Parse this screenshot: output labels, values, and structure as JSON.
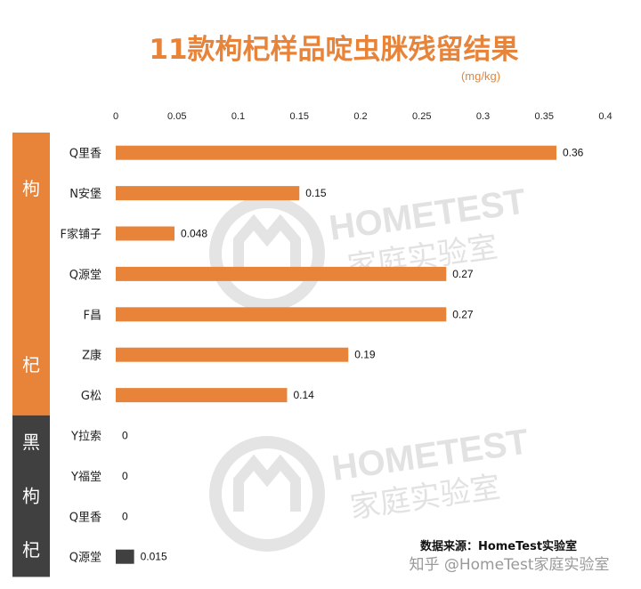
{
  "colors": {
    "accent": "#E8843A",
    "dark": "#404040",
    "watermark": "#cfcfcf"
  },
  "watermark": {
    "brand": "HOMETEST",
    "sub": "家庭实验室"
  },
  "source_note": "数据来源：HomeTest实验室",
  "footer_credit": "知乎 @HomeTest家庭实验室",
  "chart_data": {
    "type": "bar",
    "orientation": "horizontal",
    "title": "11款枸杞样品啶虫脒残留结果",
    "unit_label": "(mg/kg)",
    "xlim": [
      0,
      0.4
    ],
    "xticks": [
      "0",
      "0.05",
      "0.1",
      "0.15",
      "0.2",
      "0.25",
      "0.3",
      "0.35",
      "0.4"
    ],
    "grid": false,
    "legend": "none",
    "groups": [
      {
        "label": [
          "枸",
          "杞"
        ],
        "color": "#E8843A",
        "items": [
          {
            "label": "Q里香",
            "value": 0.36,
            "value_label": "0.36"
          },
          {
            "label": "N安堡",
            "value": 0.15,
            "value_label": "0.15"
          },
          {
            "label": "F家铺子",
            "value": 0.048,
            "value_label": "0.048"
          },
          {
            "label": "Q源堂",
            "value": 0.27,
            "value_label": "0.27"
          },
          {
            "label": "F昌",
            "value": 0.27,
            "value_label": "0.27"
          },
          {
            "label": "Z康",
            "value": 0.19,
            "value_label": "0.19"
          },
          {
            "label": "G松",
            "value": 0.14,
            "value_label": "0.14"
          }
        ]
      },
      {
        "label": [
          "黑",
          "枸",
          "杞"
        ],
        "color": "#404040",
        "items": [
          {
            "label": "Y拉索",
            "value": 0,
            "value_label": "0"
          },
          {
            "label": "Y福堂",
            "value": 0,
            "value_label": "0"
          },
          {
            "label": "Q里香",
            "value": 0,
            "value_label": "0"
          },
          {
            "label": "Q源堂",
            "value": 0.015,
            "value_label": "0.015"
          }
        ]
      }
    ]
  }
}
